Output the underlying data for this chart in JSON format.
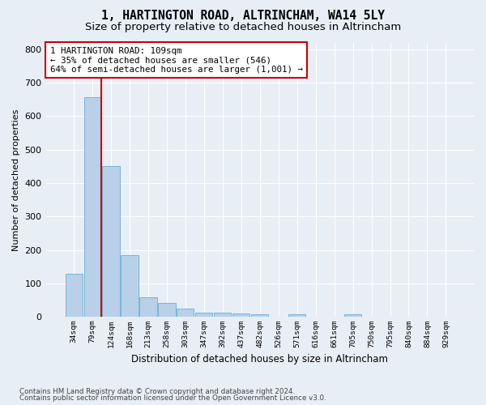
{
  "title": "1, HARTINGTON ROAD, ALTRINCHAM, WA14 5LY",
  "subtitle": "Size of property relative to detached houses in Altrincham",
  "xlabel": "Distribution of detached houses by size in Altrincham",
  "ylabel": "Number of detached properties",
  "categories": [
    "34sqm",
    "79sqm",
    "124sqm",
    "168sqm",
    "213sqm",
    "258sqm",
    "303sqm",
    "347sqm",
    "392sqm",
    "437sqm",
    "482sqm",
    "526sqm",
    "571sqm",
    "616sqm",
    "661sqm",
    "705sqm",
    "750sqm",
    "795sqm",
    "840sqm",
    "884sqm",
    "929sqm"
  ],
  "values": [
    128,
    656,
    452,
    184,
    60,
    43,
    25,
    12,
    13,
    11,
    8,
    0,
    7,
    0,
    0,
    8,
    0,
    0,
    0,
    0,
    0
  ],
  "bar_color": "#b8d0e8",
  "bar_edge_color": "#6aaed6",
  "annotation_text_line1": "1 HARTINGTON ROAD: 109sqm",
  "annotation_text_line2": "← 35% of detached houses are smaller (546)",
  "annotation_text_line3": "64% of semi-detached houses are larger (1,001) →",
  "annotation_box_color": "#cc0000",
  "ylim": [
    0,
    820
  ],
  "yticks": [
    0,
    100,
    200,
    300,
    400,
    500,
    600,
    700,
    800
  ],
  "footer_line1": "Contains HM Land Registry data © Crown copyright and database right 2024.",
  "footer_line2": "Contains public sector information licensed under the Open Government Licence v3.0.",
  "bg_color": "#e8eef5",
  "plot_bg_color": "#e8eef5",
  "grid_color": "#ffffff",
  "title_fontsize": 10.5,
  "subtitle_fontsize": 9.5
}
